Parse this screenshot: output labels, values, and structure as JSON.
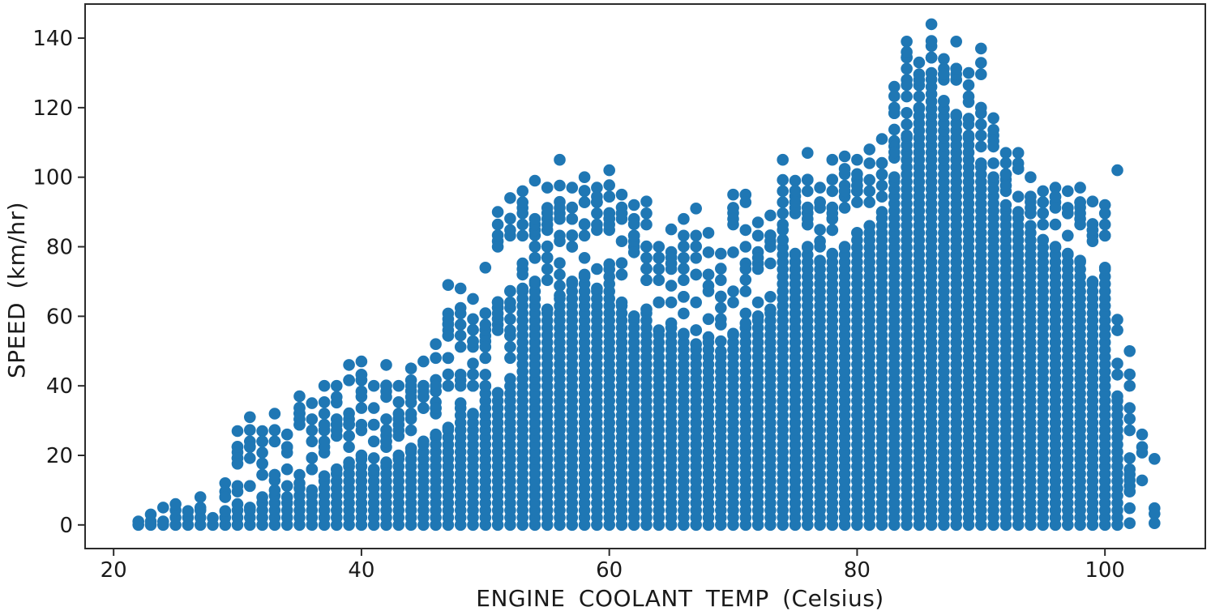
{
  "chart_data": {
    "type": "scatter",
    "title": "",
    "xlabel": "ENGINE COOLANT TEMP (Celsius)",
    "ylabel": "SPEED (km/hr)",
    "xlim": [
      17.7,
      108.1
    ],
    "ylim": [
      -6.8,
      149.8
    ],
    "xticks": [
      20,
      40,
      60,
      80,
      100
    ],
    "yticks": [
      0,
      20,
      40,
      60,
      80,
      100,
      120,
      140
    ],
    "grid": false,
    "legend": null,
    "marker": {
      "color": "#1f77b4",
      "radius_px": 7.3
    },
    "style": {
      "spine_color": "#2b2b2b",
      "text_color": "#1a1a1a",
      "background": "#ffffff"
    },
    "columns_format": "Each column entry is [temp_celsius, solid_column_top_speed, max_speed, sparse_point_count]: a dense vertical run of points from 0 up to solid_column_top_speed at that integer temperature, scattered points between there and max_speed, and a point at max_speed.",
    "columns": [
      [
        22,
        1,
        1,
        0
      ],
      [
        23,
        1,
        3,
        1
      ],
      [
        24,
        1,
        5,
        2
      ],
      [
        25,
        6,
        6,
        0
      ],
      [
        26,
        4,
        4,
        0
      ],
      [
        27,
        5,
        8,
        1
      ],
      [
        28,
        2,
        2,
        0
      ],
      [
        29,
        4,
        12,
        3
      ],
      [
        30,
        6,
        27,
        6
      ],
      [
        31,
        5,
        31,
        5
      ],
      [
        32,
        8,
        27,
        6
      ],
      [
        33,
        10,
        32,
        6
      ],
      [
        34,
        8,
        26,
        5
      ],
      [
        35,
        12,
        37,
        7
      ],
      [
        36,
        10,
        35,
        6
      ],
      [
        37,
        14,
        40,
        7
      ],
      [
        38,
        16,
        40,
        6
      ],
      [
        39,
        18,
        46,
        7
      ],
      [
        40,
        20,
        47,
        7
      ],
      [
        41,
        16,
        40,
        6
      ],
      [
        42,
        18,
        46,
        7
      ],
      [
        43,
        20,
        40,
        5
      ],
      [
        44,
        22,
        45,
        6
      ],
      [
        45,
        24,
        47,
        6
      ],
      [
        46,
        26,
        52,
        7
      ],
      [
        47,
        28,
        69,
        9
      ],
      [
        48,
        35,
        68,
        8
      ],
      [
        49,
        32,
        65,
        8
      ],
      [
        50,
        40,
        74,
        8
      ],
      [
        51,
        38,
        90,
        10
      ],
      [
        52,
        42,
        94,
        10
      ],
      [
        53,
        68,
        96,
        8
      ],
      [
        54,
        70,
        99,
        8
      ],
      [
        55,
        62,
        97,
        8
      ],
      [
        56,
        66,
        105,
        8
      ],
      [
        57,
        70,
        97,
        7
      ],
      [
        58,
        72,
        100,
        7
      ],
      [
        59,
        68,
        97,
        7
      ],
      [
        60,
        75,
        102,
        7
      ],
      [
        61,
        64,
        95,
        7
      ],
      [
        62,
        60,
        92,
        7
      ],
      [
        63,
        62,
        93,
        7
      ],
      [
        64,
        56,
        80,
        6
      ],
      [
        65,
        58,
        85,
        6
      ],
      [
        66,
        55,
        88,
        7
      ],
      [
        67,
        52,
        91,
        7
      ],
      [
        68,
        54,
        84,
        6
      ],
      [
        69,
        50,
        78,
        6
      ],
      [
        70,
        55,
        95,
        7
      ],
      [
        71,
        58,
        95,
        7
      ],
      [
        72,
        60,
        87,
        6
      ],
      [
        73,
        62,
        89,
        6
      ],
      [
        74,
        82,
        105,
        6
      ],
      [
        75,
        78,
        99,
        5
      ],
      [
        76,
        80,
        107,
        6
      ],
      [
        77,
        76,
        97,
        5
      ],
      [
        78,
        78,
        105,
        6
      ],
      [
        79,
        80,
        106,
        6
      ],
      [
        80,
        84,
        105,
        5
      ],
      [
        81,
        86,
        108,
        5
      ],
      [
        82,
        90,
        111,
        5
      ],
      [
        83,
        100,
        126,
        6
      ],
      [
        84,
        112,
        139,
        6
      ],
      [
        85,
        120,
        133,
        4
      ],
      [
        86,
        130,
        144,
        4
      ],
      [
        87,
        122,
        134,
        4
      ],
      [
        88,
        118,
        139,
        5
      ],
      [
        89,
        112,
        130,
        5
      ],
      [
        90,
        104,
        137,
        6
      ],
      [
        91,
        100,
        117,
        5
      ],
      [
        92,
        92,
        107,
        5
      ],
      [
        93,
        90,
        107,
        5
      ],
      [
        94,
        86,
        100,
        5
      ],
      [
        95,
        82,
        96,
        4
      ],
      [
        96,
        80,
        97,
        5
      ],
      [
        97,
        78,
        96,
        5
      ],
      [
        98,
        76,
        97,
        5
      ],
      [
        99,
        70,
        93,
        5
      ],
      [
        100,
        74,
        92,
        4
      ],
      [
        101,
        37,
        59,
        4
      ],
      [
        102,
        0,
        50,
        9
      ],
      [
        103,
        0,
        26,
        3
      ],
      [
        104,
        0,
        19,
        2
      ]
    ],
    "outliers": [
      [
        101,
        102
      ],
      [
        102,
        0.5
      ],
      [
        104,
        0.5
      ]
    ]
  }
}
